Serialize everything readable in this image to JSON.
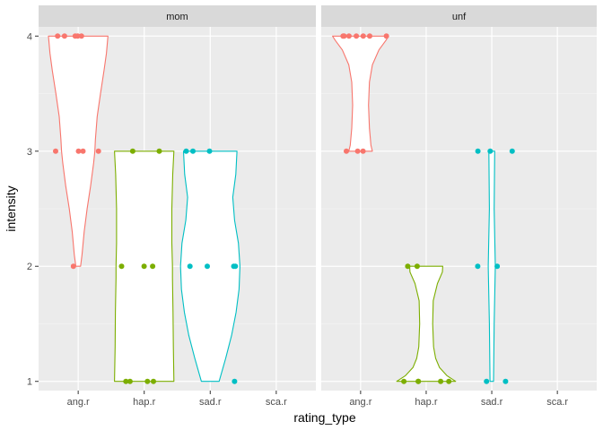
{
  "chart_data": {
    "type": "violin",
    "xlabel": "rating_type",
    "ylabel": "intensity",
    "categories": [
      "ang.r",
      "hap.r",
      "sad.r",
      "sca.r"
    ],
    "y_ticks": [
      1,
      2,
      3,
      4
    ],
    "ylim": [
      0.92,
      4.08
    ],
    "grid": true,
    "legend": "none",
    "colors": {
      "ang.r": "#F8766D",
      "hap.r": "#7CAE00",
      "sad.r": "#00BFC4",
      "sca.r": "#C77CFF"
    },
    "panels": [
      {
        "name": "mom",
        "violins": [
          {
            "category": "ang.r",
            "profile": [
              [
                2.0,
                0.08
              ],
              [
                2.1,
                0.13
              ],
              [
                2.3,
                0.2
              ],
              [
                2.5,
                0.3
              ],
              [
                2.7,
                0.42
              ],
              [
                2.9,
                0.52
              ],
              [
                3.0,
                0.56
              ],
              [
                3.1,
                0.58
              ],
              [
                3.3,
                0.64
              ],
              [
                3.5,
                0.75
              ],
              [
                3.7,
                0.87
              ],
              [
                3.85,
                0.95
              ],
              [
                4.0,
                1.0
              ]
            ]
          },
          {
            "category": "hap.r",
            "profile": [
              [
                1.0,
                1.0
              ],
              [
                1.3,
                0.98
              ],
              [
                1.6,
                0.97
              ],
              [
                1.9,
                0.95
              ],
              [
                2.0,
                0.95
              ],
              [
                2.2,
                0.93
              ],
              [
                2.5,
                0.93
              ],
              [
                2.8,
                0.96
              ],
              [
                3.0,
                1.0
              ]
            ]
          },
          {
            "category": "sad.r",
            "profile": [
              [
                1.0,
                0.3
              ],
              [
                1.2,
                0.52
              ],
              [
                1.4,
                0.72
              ],
              [
                1.6,
                0.87
              ],
              [
                1.8,
                0.97
              ],
              [
                2.0,
                1.0
              ],
              [
                2.2,
                0.95
              ],
              [
                2.4,
                0.82
              ],
              [
                2.6,
                0.76
              ],
              [
                2.8,
                0.86
              ],
              [
                3.0,
                0.9
              ]
            ]
          }
        ],
        "points": [
          {
            "category": "ang.r",
            "values": [
              4,
              4,
              4,
              4,
              4,
              3,
              3,
              3,
              3,
              2
            ]
          },
          {
            "category": "hap.r",
            "values": [
              3,
              3,
              2,
              2,
              2,
              1,
              1,
              1,
              1
            ]
          },
          {
            "category": "sad.r",
            "values": [
              3,
              3,
              3,
              2,
              2,
              2,
              2,
              1
            ]
          }
        ]
      },
      {
        "name": "unf",
        "violins": [
          {
            "category": "ang.r",
            "profile": [
              [
                3.0,
                0.4
              ],
              [
                3.05,
                0.35
              ],
              [
                3.2,
                0.3
              ],
              [
                3.4,
                0.27
              ],
              [
                3.6,
                0.3
              ],
              [
                3.75,
                0.4
              ],
              [
                3.88,
                0.62
              ],
              [
                3.96,
                0.85
              ],
              [
                4.0,
                0.95
              ]
            ]
          },
          {
            "category": "hap.r",
            "profile": [
              [
                1.0,
                1.0
              ],
              [
                1.05,
                0.7
              ],
              [
                1.12,
                0.45
              ],
              [
                1.2,
                0.32
              ],
              [
                1.3,
                0.25
              ],
              [
                1.5,
                0.22
              ],
              [
                1.7,
                0.24
              ],
              [
                1.85,
                0.38
              ],
              [
                1.95,
                0.55
              ],
              [
                2.0,
                0.56
              ]
            ]
          },
          {
            "category": "sad.r",
            "profile": [
              [
                1.0,
                0.06
              ],
              [
                1.5,
                0.08
              ],
              [
                2.0,
                0.12
              ],
              [
                2.5,
                0.08
              ],
              [
                3.0,
                0.1
              ]
            ]
          }
        ],
        "points": [
          {
            "category": "ang.r",
            "values": [
              4,
              4,
              4,
              4,
              4,
              4,
              4,
              3,
              3,
              3
            ]
          },
          {
            "category": "hap.r",
            "values": [
              2,
              2,
              1,
              1,
              1,
              1,
              1
            ]
          },
          {
            "category": "sad.r",
            "values": [
              3,
              3,
              3,
              2,
              2,
              1,
              1
            ]
          }
        ]
      }
    ]
  }
}
